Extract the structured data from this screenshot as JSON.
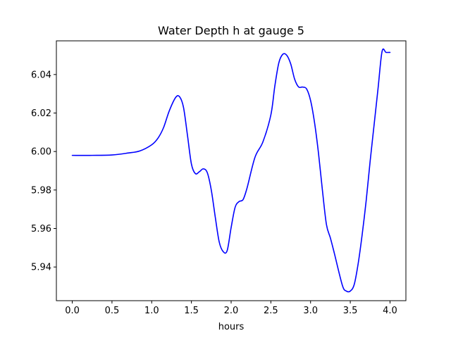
{
  "chart_data": {
    "type": "line",
    "title": "Water Depth h at gauge 5",
    "xlabel": "hours",
    "ylabel": "",
    "xlim": [
      -0.2,
      4.2
    ],
    "ylim": [
      5.9225,
      6.0575
    ],
    "grid": false,
    "xticks": [
      0.0,
      0.5,
      1.0,
      1.5,
      2.0,
      2.5,
      3.0,
      3.5,
      4.0
    ],
    "xtick_labels": [
      "0.0",
      "0.5",
      "1.0",
      "1.5",
      "2.0",
      "2.5",
      "3.0",
      "3.5",
      "4.0"
    ],
    "yticks": [
      5.94,
      5.96,
      5.98,
      6.0,
      6.02,
      6.04
    ],
    "ytick_labels": [
      "5.94",
      "5.96",
      "5.98",
      "6.00",
      "6.02",
      "6.04"
    ],
    "series": [
      {
        "color": "#0000ff",
        "x": [
          0.0,
          0.25,
          0.5,
          0.7,
          0.85,
          1.0,
          1.08,
          1.15,
          1.22,
          1.3,
          1.35,
          1.4,
          1.45,
          1.5,
          1.55,
          1.6,
          1.65,
          1.7,
          1.75,
          1.8,
          1.85,
          1.9,
          1.95,
          2.0,
          2.05,
          2.1,
          2.15,
          2.2,
          2.3,
          2.4,
          2.5,
          2.55,
          2.6,
          2.65,
          2.7,
          2.75,
          2.8,
          2.85,
          2.9,
          2.95,
          3.0,
          3.05,
          3.1,
          3.15,
          3.2,
          3.25,
          3.3,
          3.4,
          3.45,
          3.5,
          3.55,
          3.6,
          3.65,
          3.7,
          3.75,
          3.8,
          3.85,
          3.9,
          3.95,
          4.0
        ],
        "y": [
          5.998,
          5.998,
          5.9982,
          5.9992,
          6.0003,
          6.0035,
          6.007,
          6.0125,
          6.021,
          6.028,
          6.0285,
          6.023,
          6.0085,
          5.9935,
          5.9885,
          5.9895,
          5.991,
          5.989,
          5.98,
          5.966,
          5.953,
          5.948,
          5.9485,
          5.9605,
          5.971,
          5.974,
          5.975,
          5.981,
          5.997,
          6.005,
          6.019,
          6.034,
          6.046,
          6.0505,
          6.05,
          6.0455,
          6.0375,
          6.0335,
          6.0335,
          6.0325,
          6.0265,
          6.015,
          5.999,
          5.9795,
          5.962,
          5.955,
          5.947,
          5.9305,
          5.9275,
          5.9275,
          5.931,
          5.942,
          5.957,
          5.9745,
          5.995,
          6.014,
          6.033,
          6.052,
          6.0515,
          6.0515
        ]
      }
    ]
  }
}
